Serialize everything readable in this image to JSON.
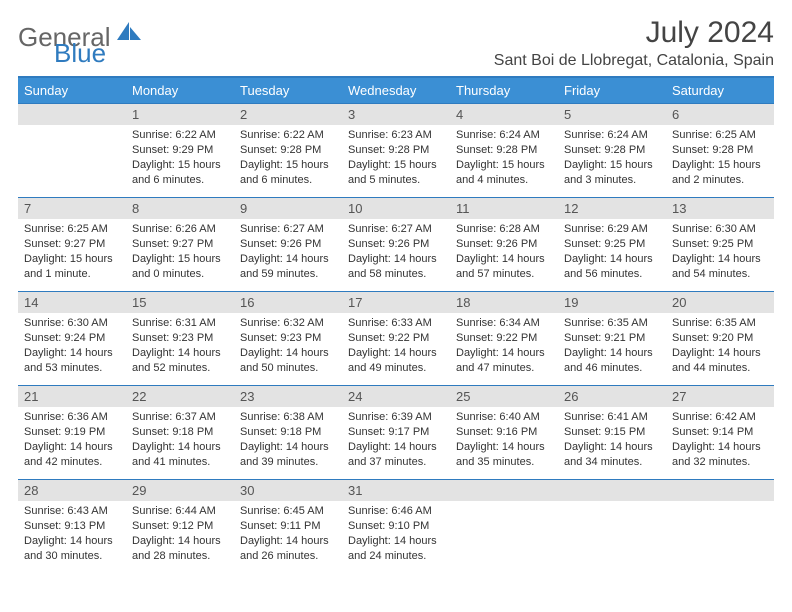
{
  "brand": {
    "part1": "General",
    "part2": "Blue"
  },
  "title": "July 2024",
  "location": "Sant Boi de Llobregat, Catalonia, Spain",
  "colors": {
    "header_bg": "#3b8fd4",
    "rule": "#2f7bbf",
    "daynum_bg": "#e3e3e3",
    "text": "#333333"
  },
  "columns": [
    "Sunday",
    "Monday",
    "Tuesday",
    "Wednesday",
    "Thursday",
    "Friday",
    "Saturday"
  ],
  "weeks": [
    [
      {
        "n": "",
        "sunrise": "",
        "sunset": "",
        "daylight": ""
      },
      {
        "n": "1",
        "sunrise": "Sunrise: 6:22 AM",
        "sunset": "Sunset: 9:29 PM",
        "daylight": "Daylight: 15 hours and 6 minutes."
      },
      {
        "n": "2",
        "sunrise": "Sunrise: 6:22 AM",
        "sunset": "Sunset: 9:28 PM",
        "daylight": "Daylight: 15 hours and 6 minutes."
      },
      {
        "n": "3",
        "sunrise": "Sunrise: 6:23 AM",
        "sunset": "Sunset: 9:28 PM",
        "daylight": "Daylight: 15 hours and 5 minutes."
      },
      {
        "n": "4",
        "sunrise": "Sunrise: 6:24 AM",
        "sunset": "Sunset: 9:28 PM",
        "daylight": "Daylight: 15 hours and 4 minutes."
      },
      {
        "n": "5",
        "sunrise": "Sunrise: 6:24 AM",
        "sunset": "Sunset: 9:28 PM",
        "daylight": "Daylight: 15 hours and 3 minutes."
      },
      {
        "n": "6",
        "sunrise": "Sunrise: 6:25 AM",
        "sunset": "Sunset: 9:28 PM",
        "daylight": "Daylight: 15 hours and 2 minutes."
      }
    ],
    [
      {
        "n": "7",
        "sunrise": "Sunrise: 6:25 AM",
        "sunset": "Sunset: 9:27 PM",
        "daylight": "Daylight: 15 hours and 1 minute."
      },
      {
        "n": "8",
        "sunrise": "Sunrise: 6:26 AM",
        "sunset": "Sunset: 9:27 PM",
        "daylight": "Daylight: 15 hours and 0 minutes."
      },
      {
        "n": "9",
        "sunrise": "Sunrise: 6:27 AM",
        "sunset": "Sunset: 9:26 PM",
        "daylight": "Daylight: 14 hours and 59 minutes."
      },
      {
        "n": "10",
        "sunrise": "Sunrise: 6:27 AM",
        "sunset": "Sunset: 9:26 PM",
        "daylight": "Daylight: 14 hours and 58 minutes."
      },
      {
        "n": "11",
        "sunrise": "Sunrise: 6:28 AM",
        "sunset": "Sunset: 9:26 PM",
        "daylight": "Daylight: 14 hours and 57 minutes."
      },
      {
        "n": "12",
        "sunrise": "Sunrise: 6:29 AM",
        "sunset": "Sunset: 9:25 PM",
        "daylight": "Daylight: 14 hours and 56 minutes."
      },
      {
        "n": "13",
        "sunrise": "Sunrise: 6:30 AM",
        "sunset": "Sunset: 9:25 PM",
        "daylight": "Daylight: 14 hours and 54 minutes."
      }
    ],
    [
      {
        "n": "14",
        "sunrise": "Sunrise: 6:30 AM",
        "sunset": "Sunset: 9:24 PM",
        "daylight": "Daylight: 14 hours and 53 minutes."
      },
      {
        "n": "15",
        "sunrise": "Sunrise: 6:31 AM",
        "sunset": "Sunset: 9:23 PM",
        "daylight": "Daylight: 14 hours and 52 minutes."
      },
      {
        "n": "16",
        "sunrise": "Sunrise: 6:32 AM",
        "sunset": "Sunset: 9:23 PM",
        "daylight": "Daylight: 14 hours and 50 minutes."
      },
      {
        "n": "17",
        "sunrise": "Sunrise: 6:33 AM",
        "sunset": "Sunset: 9:22 PM",
        "daylight": "Daylight: 14 hours and 49 minutes."
      },
      {
        "n": "18",
        "sunrise": "Sunrise: 6:34 AM",
        "sunset": "Sunset: 9:22 PM",
        "daylight": "Daylight: 14 hours and 47 minutes."
      },
      {
        "n": "19",
        "sunrise": "Sunrise: 6:35 AM",
        "sunset": "Sunset: 9:21 PM",
        "daylight": "Daylight: 14 hours and 46 minutes."
      },
      {
        "n": "20",
        "sunrise": "Sunrise: 6:35 AM",
        "sunset": "Sunset: 9:20 PM",
        "daylight": "Daylight: 14 hours and 44 minutes."
      }
    ],
    [
      {
        "n": "21",
        "sunrise": "Sunrise: 6:36 AM",
        "sunset": "Sunset: 9:19 PM",
        "daylight": "Daylight: 14 hours and 42 minutes."
      },
      {
        "n": "22",
        "sunrise": "Sunrise: 6:37 AM",
        "sunset": "Sunset: 9:18 PM",
        "daylight": "Daylight: 14 hours and 41 minutes."
      },
      {
        "n": "23",
        "sunrise": "Sunrise: 6:38 AM",
        "sunset": "Sunset: 9:18 PM",
        "daylight": "Daylight: 14 hours and 39 minutes."
      },
      {
        "n": "24",
        "sunrise": "Sunrise: 6:39 AM",
        "sunset": "Sunset: 9:17 PM",
        "daylight": "Daylight: 14 hours and 37 minutes."
      },
      {
        "n": "25",
        "sunrise": "Sunrise: 6:40 AM",
        "sunset": "Sunset: 9:16 PM",
        "daylight": "Daylight: 14 hours and 35 minutes."
      },
      {
        "n": "26",
        "sunrise": "Sunrise: 6:41 AM",
        "sunset": "Sunset: 9:15 PM",
        "daylight": "Daylight: 14 hours and 34 minutes."
      },
      {
        "n": "27",
        "sunrise": "Sunrise: 6:42 AM",
        "sunset": "Sunset: 9:14 PM",
        "daylight": "Daylight: 14 hours and 32 minutes."
      }
    ],
    [
      {
        "n": "28",
        "sunrise": "Sunrise: 6:43 AM",
        "sunset": "Sunset: 9:13 PM",
        "daylight": "Daylight: 14 hours and 30 minutes."
      },
      {
        "n": "29",
        "sunrise": "Sunrise: 6:44 AM",
        "sunset": "Sunset: 9:12 PM",
        "daylight": "Daylight: 14 hours and 28 minutes."
      },
      {
        "n": "30",
        "sunrise": "Sunrise: 6:45 AM",
        "sunset": "Sunset: 9:11 PM",
        "daylight": "Daylight: 14 hours and 26 minutes."
      },
      {
        "n": "31",
        "sunrise": "Sunrise: 6:46 AM",
        "sunset": "Sunset: 9:10 PM",
        "daylight": "Daylight: 14 hours and 24 minutes."
      },
      {
        "n": "",
        "sunrise": "",
        "sunset": "",
        "daylight": ""
      },
      {
        "n": "",
        "sunrise": "",
        "sunset": "",
        "daylight": ""
      },
      {
        "n": "",
        "sunrise": "",
        "sunset": "",
        "daylight": ""
      }
    ]
  ]
}
